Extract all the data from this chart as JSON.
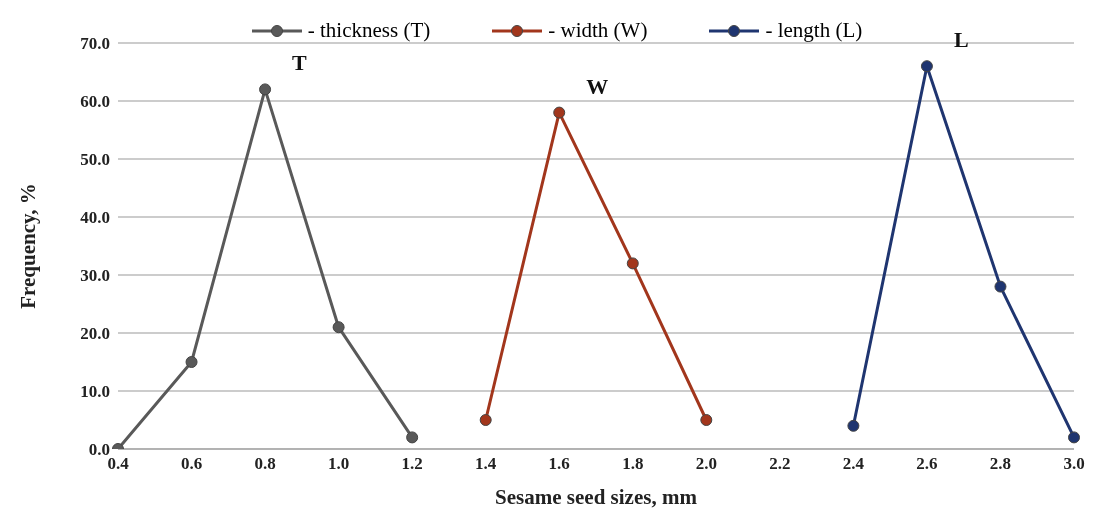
{
  "chart_data": {
    "type": "line",
    "xlabel": "Sesame seed sizes, mm",
    "ylabel": "Frequency, %",
    "categories": [
      "0.4",
      "0.6",
      "0.8",
      "1.0",
      "1.2",
      "1.4",
      "1.6",
      "1.8",
      "2.0",
      "2.2",
      "2.4",
      "2.6",
      "2.8",
      "3.0"
    ],
    "series": [
      {
        "name": "- thickness (T)",
        "color": "#595959",
        "values": [
          0,
          15,
          62,
          21,
          2,
          null,
          null,
          null,
          null,
          null,
          null,
          null,
          null,
          null
        ]
      },
      {
        "name": "-  width (W)",
        "color": "#a2361c",
        "values": [
          null,
          null,
          null,
          null,
          null,
          5,
          58,
          32,
          5,
          null,
          null,
          null,
          null,
          null
        ]
      },
      {
        "name": "-  length (L)",
        "color": "#1f3570",
        "values": [
          null,
          null,
          null,
          null,
          null,
          null,
          null,
          null,
          null,
          null,
          4,
          66,
          28,
          2
        ]
      }
    ],
    "ylim": [
      0,
      70
    ],
    "yticks": [
      {
        "value": 0,
        "label": "0.0"
      },
      {
        "value": 10,
        "label": "10.0"
      },
      {
        "value": 20,
        "label": "20.0"
      },
      {
        "value": 30,
        "label": "30.0"
      },
      {
        "value": 40,
        "label": "40.0"
      },
      {
        "value": 50,
        "label": "50.0"
      },
      {
        "value": 60,
        "label": "60.0"
      },
      {
        "value": 70,
        "label": "70.0"
      }
    ],
    "annotations": [
      {
        "text": "T",
        "x": "0.8",
        "y": 62
      },
      {
        "text": "W",
        "x": "1.6",
        "y": 58
      },
      {
        "text": "L",
        "x": "2.6",
        "y": 66
      }
    ],
    "grid": "y",
    "legend": "top",
    "marker": "circle",
    "line_style": "solid"
  }
}
